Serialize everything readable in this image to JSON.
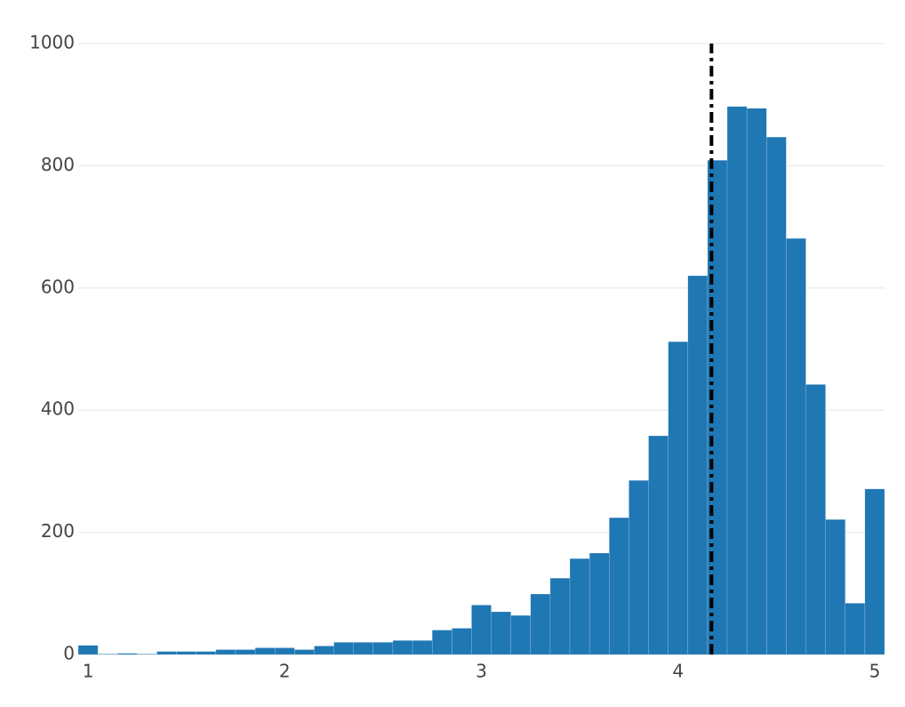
{
  "chart_data": {
    "type": "histogram",
    "bins": [
      0.95,
      1.05,
      1.15,
      1.25,
      1.35,
      1.45,
      1.55,
      1.65,
      1.75,
      1.85,
      1.95,
      2.05,
      2.15,
      2.25,
      2.35,
      2.45,
      2.55,
      2.65,
      2.75,
      2.85,
      2.95,
      3.05,
      3.15,
      3.25,
      3.35,
      3.45,
      3.55,
      3.65,
      3.75,
      3.85,
      3.95,
      4.05,
      4.15,
      4.25,
      4.35,
      4.45,
      4.55,
      4.65,
      4.75,
      4.85,
      4.95,
      5.05
    ],
    "values": [
      15,
      1,
      2,
      1,
      5,
      5,
      5,
      8,
      8,
      11,
      11,
      8,
      14,
      20,
      20,
      20,
      23,
      23,
      40,
      43,
      81,
      70,
      64,
      99,
      125,
      157,
      166,
      224,
      285,
      358,
      512,
      620,
      809,
      897,
      894,
      847,
      681,
      442,
      221,
      84,
      271
    ],
    "color": "#1f77b4",
    "xlim": [
      0.95,
      5.05
    ],
    "xticks": [
      1,
      2,
      3,
      4,
      5
    ],
    "ylim": [
      0,
      1000
    ],
    "yticks": [
      0,
      200,
      400,
      600,
      800,
      1000
    ],
    "grid": true,
    "vline": {
      "x": 4.17,
      "color": "#000000"
    }
  }
}
